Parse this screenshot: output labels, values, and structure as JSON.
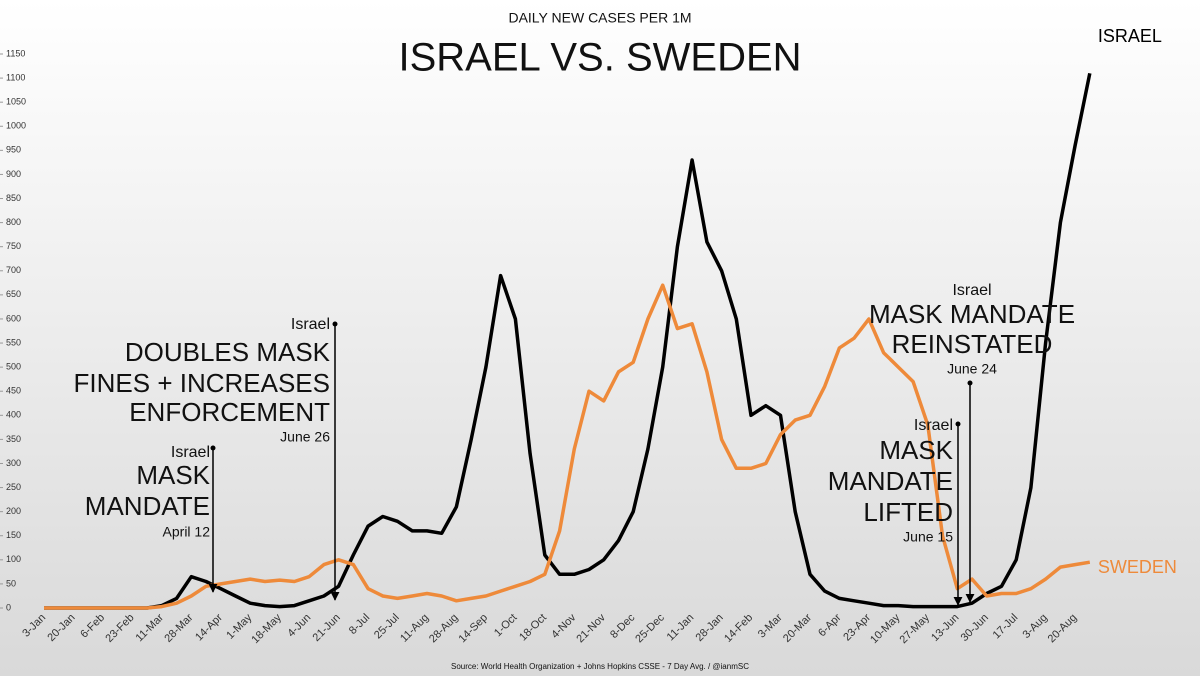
{
  "chart_data": {
    "type": "line",
    "subtitle": "DAILY NEW CASES PER 1M",
    "title": "ISRAEL VS. SWEDEN",
    "source": "Source: World Health Organization + Johns Hopkins CSSE - 7 Day Avg. / @ianmSC",
    "categories": [
      "3-Jan",
      null,
      "20-Jan",
      null,
      "6-Feb",
      null,
      "23-Feb",
      null,
      "11-Mar",
      null,
      "28-Mar",
      null,
      "14-Apr",
      null,
      "1-May",
      null,
      "18-May",
      null,
      "4-Jun",
      null,
      "21-Jun",
      null,
      "8-Jul",
      null,
      "25-Jul",
      null,
      "11-Aug",
      null,
      "28-Aug",
      null,
      "14-Sep",
      null,
      "1-Oct",
      null,
      "18-Oct",
      null,
      "4-Nov",
      null,
      "21-Nov",
      null,
      "8-Dec",
      null,
      "25-Dec",
      null,
      "11-Jan",
      null,
      "28-Jan",
      null,
      "14-Feb",
      null,
      "3-Mar",
      null,
      "20-Mar",
      null,
      "6-Apr",
      null,
      "23-Apr",
      null,
      "10-May",
      null,
      "27-May",
      null,
      "13-Jun",
      null,
      "30-Jun",
      null,
      "17-Jul",
      null,
      "3-Aug",
      null,
      "20-Aug",
      null
    ],
    "series": [
      {
        "name": "ISRAEL",
        "color": "#000000",
        "values": [
          0,
          0,
          0,
          0,
          0,
          0,
          0,
          0,
          5,
          20,
          65,
          55,
          40,
          25,
          10,
          5,
          3,
          5,
          15,
          25,
          45,
          110,
          170,
          190,
          180,
          160,
          160,
          155,
          210,
          350,
          500,
          690,
          600,
          320,
          110,
          70,
          70,
          80,
          100,
          140,
          200,
          330,
          500,
          750,
          930,
          760,
          700,
          600,
          400,
          420,
          400,
          200,
          70,
          35,
          20,
          15,
          10,
          5,
          5,
          3,
          3,
          3,
          3,
          10,
          30,
          45,
          100,
          250,
          550,
          800,
          960,
          1110
        ]
      },
      {
        "name": "SWEDEN",
        "color": "#ee8a3a",
        "values": [
          0,
          0,
          0,
          0,
          0,
          0,
          0,
          0,
          3,
          10,
          25,
          45,
          50,
          55,
          60,
          55,
          58,
          55,
          65,
          90,
          100,
          90,
          40,
          25,
          20,
          25,
          30,
          25,
          15,
          20,
          25,
          35,
          45,
          55,
          70,
          160,
          330,
          450,
          430,
          490,
          510,
          600,
          670,
          580,
          590,
          490,
          350,
          290,
          290,
          300,
          360,
          390,
          400,
          460,
          540,
          560,
          600,
          530,
          500,
          470,
          380,
          150,
          40,
          60,
          25,
          30,
          30,
          40,
          60,
          85,
          90,
          95
        ]
      }
    ],
    "ylim": [
      0,
      1150
    ],
    "yticks": [
      0,
      50,
      100,
      150,
      200,
      250,
      300,
      350,
      400,
      450,
      500,
      550,
      600,
      650,
      700,
      750,
      800,
      850,
      900,
      950,
      1000,
      1050,
      1100,
      1150
    ],
    "annotations": [
      {
        "lines": [
          "Israel",
          "MASK",
          "MANDATE",
          "April 12"
        ]
      },
      {
        "lines": [
          "Israel",
          "DOUBLES MASK",
          "FINES + INCREASES",
          "ENFORCEMENT",
          "June 26"
        ]
      },
      {
        "lines": [
          "Israel",
          "MASK MANDATE",
          "REINSTATED",
          "June 24"
        ]
      },
      {
        "lines": [
          "Israel",
          "MASK",
          "MANDATE",
          "LIFTED",
          "June 15"
        ]
      }
    ]
  }
}
